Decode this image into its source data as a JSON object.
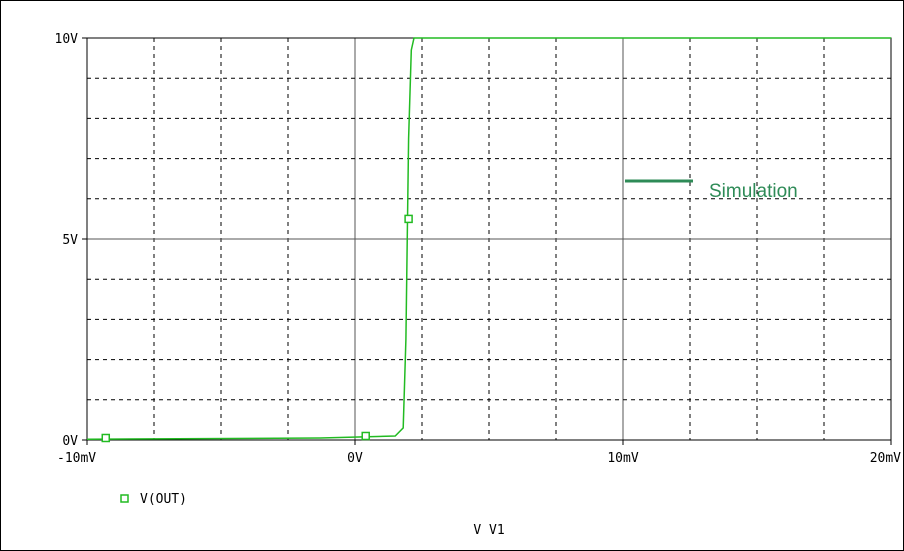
{
  "chart_data": {
    "type": "line",
    "xlabel": "V_V1",
    "xlim": [
      -0.01,
      0.02
    ],
    "ylim": [
      0,
      10
    ],
    "x_ticks": [
      {
        "value": -0.01,
        "label": "-10mV"
      },
      {
        "value": 0,
        "label": "0V"
      },
      {
        "value": 0.01,
        "label": "10mV"
      },
      {
        "value": 0.02,
        "label": "20mV"
      }
    ],
    "y_ticks": [
      {
        "value": 0,
        "label": "0V"
      },
      {
        "value": 5,
        "label": "5V"
      },
      {
        "value": 10,
        "label": "10V"
      }
    ],
    "grid": true,
    "series": [
      {
        "name": "V(OUT)",
        "color": "#22bb22",
        "marker": "open-square",
        "x": [
          -0.01,
          -0.0013,
          0.0015,
          0.0018,
          0.0019,
          0.002,
          0.0021,
          0.0022,
          0.02
        ],
        "y": [
          0.02,
          0.05,
          0.1,
          0.3,
          2.5,
          7.5,
          9.7,
          10,
          10
        ],
        "markers": [
          {
            "x": -0.0093,
            "y": 0.05
          },
          {
            "x": 0.0004,
            "y": 0.1
          },
          {
            "x": 0.002,
            "y": 5.5
          }
        ]
      }
    ],
    "legend": {
      "label": "V(OUT)",
      "placement": "bottom-left"
    },
    "annotation": {
      "text": "Simulation",
      "color": "#2e8b57"
    }
  }
}
